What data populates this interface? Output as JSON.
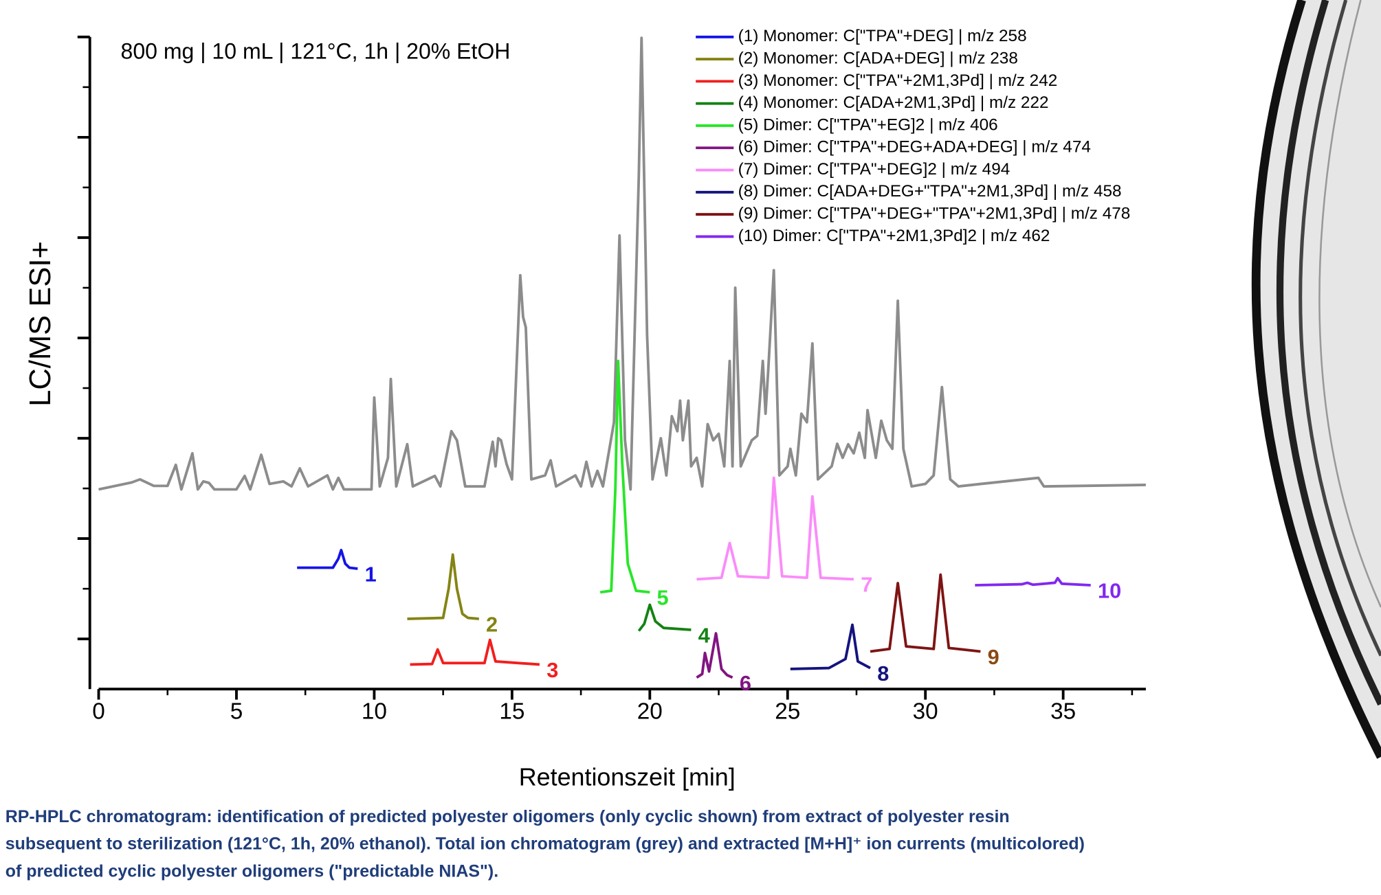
{
  "chart_data": {
    "type": "line",
    "annotation": "800 mg | 10 mL | 121°C, 1h | 20% EtOH",
    "xlabel": "Retentionszeit [min]",
    "ylabel": "LC/MS ESI+",
    "caption": [
      "RP-HPLC chromatogram: identification of predicted polyester oligomers (only cyclic shown) from extract of polyester resin",
      "subsequent to sterilization (121°C, 1h, 20% ethanol). Total ion chromatogram (grey) and extracted [M+H]⁺ ion currents (multicolored)",
      "of predicted cyclic polyester oligomers (\"predictable NIAS\")."
    ],
    "xlim": [
      0,
      38
    ],
    "xticks": [
      0,
      5,
      10,
      15,
      20,
      25,
      30,
      35
    ],
    "xminor_ticks": [
      2.5,
      7.5,
      12.5,
      17.5,
      22.5,
      27.5,
      32.5,
      37.5
    ],
    "ylim": [
      0,
      13
    ],
    "yticks": [
      1,
      3,
      5,
      7,
      9,
      11,
      13
    ],
    "yminor_ticks": [
      2,
      4,
      6,
      8,
      10,
      12
    ],
    "y_tick_labels": false,
    "legend": "upper right",
    "tic": {
      "color": "#8c8c8c",
      "x": [
        0,
        1.2,
        1.5,
        2,
        2.5,
        2.8,
        3.0,
        3.4,
        3.6,
        3.8,
        4.0,
        4.2,
        5.0,
        5.3,
        5.5,
        5.9,
        6.2,
        6.7,
        7.0,
        7.3,
        7.6,
        8.3,
        8.5,
        8.7,
        8.9,
        9.9,
        10.0,
        10.2,
        10.5,
        10.6,
        10.8,
        11.2,
        11.4,
        12.2,
        12.4,
        12.8,
        13.0,
        13.3,
        14.0,
        14.3,
        14.4,
        14.5,
        14.6,
        14.8,
        15.0,
        15.3,
        15.4,
        15.5,
        15.7,
        16.2,
        16.4,
        16.6,
        17.3,
        17.5,
        17.7,
        17.9,
        18.1,
        18.3,
        18.7,
        18.9,
        19.1,
        19.3,
        19.6,
        19.7,
        19.9,
        20.1,
        20.4,
        20.6,
        20.8,
        21.0,
        21.1,
        21.2,
        21.4,
        21.5,
        21.7,
        21.9,
        22.1,
        22.3,
        22.5,
        22.7,
        22.9,
        23.0,
        23.1,
        23.3,
        23.7,
        23.9,
        24.1,
        24.2,
        24.3,
        24.5,
        24.7,
        25.0,
        25.1,
        25.3,
        25.5,
        25.7,
        25.9,
        26.1,
        26.6,
        26.8,
        27.0,
        27.2,
        27.4,
        27.6,
        27.8,
        27.9,
        28.2,
        28.4,
        28.6,
        28.8,
        29.0,
        29.2,
        29.5,
        30.0,
        30.3,
        30.6,
        30.9,
        31.2,
        32.0,
        34.1,
        34.3,
        38
      ],
      "y": [
        3.98,
        4.12,
        4.18,
        4.05,
        4.05,
        4.47,
        3.98,
        4.7,
        3.98,
        4.14,
        4.11,
        3.98,
        3.98,
        4.25,
        3.98,
        4.67,
        4.09,
        4.14,
        4.04,
        4.4,
        4.04,
        4.26,
        3.98,
        4.21,
        3.98,
        3.98,
        5.81,
        4.04,
        4.61,
        6.18,
        4.04,
        4.88,
        4.04,
        4.25,
        4.04,
        5.14,
        4.96,
        4.04,
        4.04,
        4.93,
        4.44,
        5.0,
        4.96,
        4.49,
        4.18,
        8.25,
        7.42,
        7.21,
        4.18,
        4.26,
        4.56,
        4.04,
        4.26,
        4.04,
        4.53,
        4.04,
        4.35,
        4.04,
        5.32,
        9.04,
        4.96,
        3.98,
        10.23,
        12.98,
        7.07,
        4.18,
        5.0,
        4.26,
        5.44,
        5.14,
        5.75,
        4.96,
        5.75,
        4.44,
        4.61,
        4.04,
        5.28,
        4.96,
        5.09,
        4.44,
        6.54,
        4.44,
        8.0,
        4.44,
        4.96,
        5.05,
        6.54,
        5.49,
        6.37,
        8.35,
        4.26,
        4.44,
        4.79,
        4.26,
        5.49,
        5.32,
        6.89,
        4.18,
        4.44,
        4.89,
        4.61,
        4.88,
        4.7,
        5.11,
        4.61,
        5.56,
        4.61,
        5.35,
        4.96,
        4.79,
        7.74,
        4.79,
        4.04,
        4.09,
        4.26,
        6.02,
        4.18,
        4.04,
        4.09,
        4.21,
        4.04,
        4.07
      ]
    },
    "series": [
      {
        "name": "(1) Monomer: C[\"TPA\"+DEG] | m/z 258",
        "color": "#1414e6",
        "label": "1",
        "label_color": "#1414e6",
        "x": [
          7.2,
          8.5,
          8.7,
          8.8,
          8.95,
          9.1,
          9.4
        ],
        "values": [
          2.42,
          2.42,
          2.6,
          2.77,
          2.5,
          2.42,
          2.4
        ]
      },
      {
        "name": "(2) Monomer: C[ADA+DEG] | m/z 238",
        "color": "#848414",
        "label": "2",
        "label_color": "#848414",
        "x": [
          11.2,
          12.5,
          12.7,
          12.85,
          13.0,
          13.2,
          13.4,
          13.8
        ],
        "values": [
          1.4,
          1.42,
          2.0,
          2.68,
          2.0,
          1.5,
          1.42,
          1.4
        ]
      },
      {
        "name": "(3) Monomer: C[\"TPA\"+2M1,3Pd] | m/z 242",
        "color": "#f21e1e",
        "label": "3",
        "label_color": "#f21e1e",
        "x": [
          11.3,
          12.1,
          12.3,
          12.5,
          14.0,
          14.2,
          14.4,
          16.0
        ],
        "values": [
          0.49,
          0.5,
          0.79,
          0.52,
          0.52,
          0.98,
          0.55,
          0.49
        ]
      },
      {
        "name": "(4) Monomer: C[ADA+2M1,3Pd] | m/z 222",
        "color": "#148214",
        "label": "4",
        "label_color": "#148214",
        "x": [
          19.6,
          19.8,
          20.0,
          20.2,
          20.5,
          21.5
        ],
        "values": [
          1.16,
          1.3,
          1.68,
          1.35,
          1.22,
          1.18
        ]
      },
      {
        "name": "(5) Dimer: C[\"TPA\"+EG]2 | m/z 406",
        "color": "#28e628",
        "label": "5",
        "label_color": "#28e628",
        "x": [
          18.2,
          18.6,
          18.75,
          18.85,
          19.0,
          19.2,
          19.5,
          20.0
        ],
        "values": [
          1.93,
          1.96,
          4.0,
          6.54,
          4.5,
          2.5,
          1.96,
          1.93
        ]
      },
      {
        "name": "(6) Dimer: C[\"TPA\"+DEG+ADA+DEG] | m/z 474",
        "color": "#821482",
        "label": "6",
        "label_color": "#821482",
        "x": [
          21.7,
          21.9,
          22.0,
          22.15,
          22.4,
          22.6,
          22.8,
          23.0
        ],
        "values": [
          0.23,
          0.3,
          0.72,
          0.35,
          1.11,
          0.4,
          0.28,
          0.23
        ]
      },
      {
        "name": "(7) Dimer: C[\"TPA\"+DEG]2 | m/z 494",
        "color": "#fa8cfa",
        "label": "7",
        "label_color": "#fa8cfa",
        "x": [
          21.7,
          22.6,
          22.9,
          23.2,
          24.3,
          24.5,
          24.8,
          25.7,
          25.9,
          26.2,
          27.4
        ],
        "values": [
          2.19,
          2.22,
          2.91,
          2.25,
          2.22,
          4.21,
          2.25,
          2.22,
          3.84,
          2.22,
          2.19
        ]
      },
      {
        "name": "(8) Dimer: C[ADA+DEG+\"TPA\"+2M1,3Pd] | m/z 458",
        "color": "#14147e",
        "label": "8",
        "label_color": "#14147e",
        "x": [
          25.1,
          26.5,
          27.1,
          27.35,
          27.55,
          28.0
        ],
        "values": [
          0.4,
          0.42,
          0.6,
          1.28,
          0.55,
          0.42
        ]
      },
      {
        "name": "(9) Dimer: C[\"TPA\"+DEG+\"TPA\"+2M1,3Pd] | m/z 478",
        "color": "#7e1414",
        "label": "9",
        "label_color": "#8a4a14",
        "x": [
          28.0,
          28.7,
          29.0,
          29.3,
          30.3,
          30.55,
          30.85,
          32.0
        ],
        "values": [
          0.75,
          0.8,
          2.11,
          0.85,
          0.8,
          2.28,
          0.82,
          0.75
        ]
      },
      {
        "name": "(10) Dimer: C[\"TPA\"+2M1,3Pd]2 | m/z 462",
        "color": "#8228f0",
        "label": "10",
        "label_color": "#8228f0",
        "x": [
          31.8,
          33.5,
          33.7,
          33.9,
          34.7,
          34.8,
          34.95,
          36.0
        ],
        "values": [
          2.07,
          2.09,
          2.12,
          2.08,
          2.12,
          2.21,
          2.1,
          2.07
        ]
      }
    ]
  }
}
